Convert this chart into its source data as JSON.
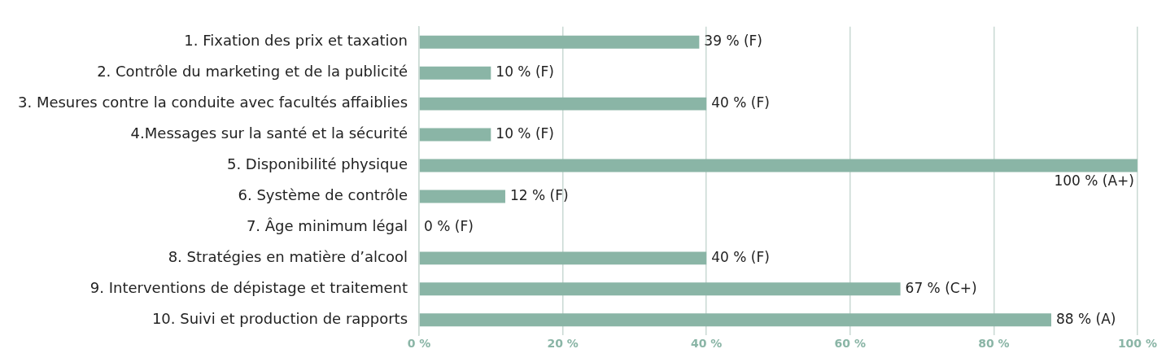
{
  "chart_data": {
    "type": "bar",
    "orientation": "horizontal",
    "categories": [
      "1. Fixation des prix et taxation",
      "2. Contrôle du marketing et de la publicité",
      "3. Mesures contre la conduite avec facultés affaiblies",
      "4.Messages sur la santé et la sécurité",
      "5. Disponibilité physique",
      "6. Système de contrôle",
      "7. Âge minimum légal",
      "8. Stratégies en matière d’alcool",
      "9. Interventions de dépistage et traitement",
      "10. Suivi et production de rapports"
    ],
    "values": [
      39,
      10,
      40,
      10,
      100,
      12,
      0,
      40,
      67,
      88
    ],
    "value_labels": [
      "39 % (F)",
      "10 % (F)",
      "40 % (F)",
      "10 % (F)",
      "100 % (A+)",
      "12 % (F)",
      "0 % (F)",
      "40 % (F)",
      "67 % (C+)",
      "88 % (A)"
    ],
    "color": "#8ab5a6",
    "xlim": [
      0,
      100
    ],
    "xticks": [
      {
        "value": 0,
        "label": "0 %"
      },
      {
        "value": 20,
        "label": "20 %"
      },
      {
        "value": 40,
        "label": "40 %"
      },
      {
        "value": 60,
        "label": "60 %"
      },
      {
        "value": 80,
        "label": "80 %"
      },
      {
        "value": 100,
        "label": "100 %"
      }
    ],
    "grid": "x",
    "legend": false
  }
}
